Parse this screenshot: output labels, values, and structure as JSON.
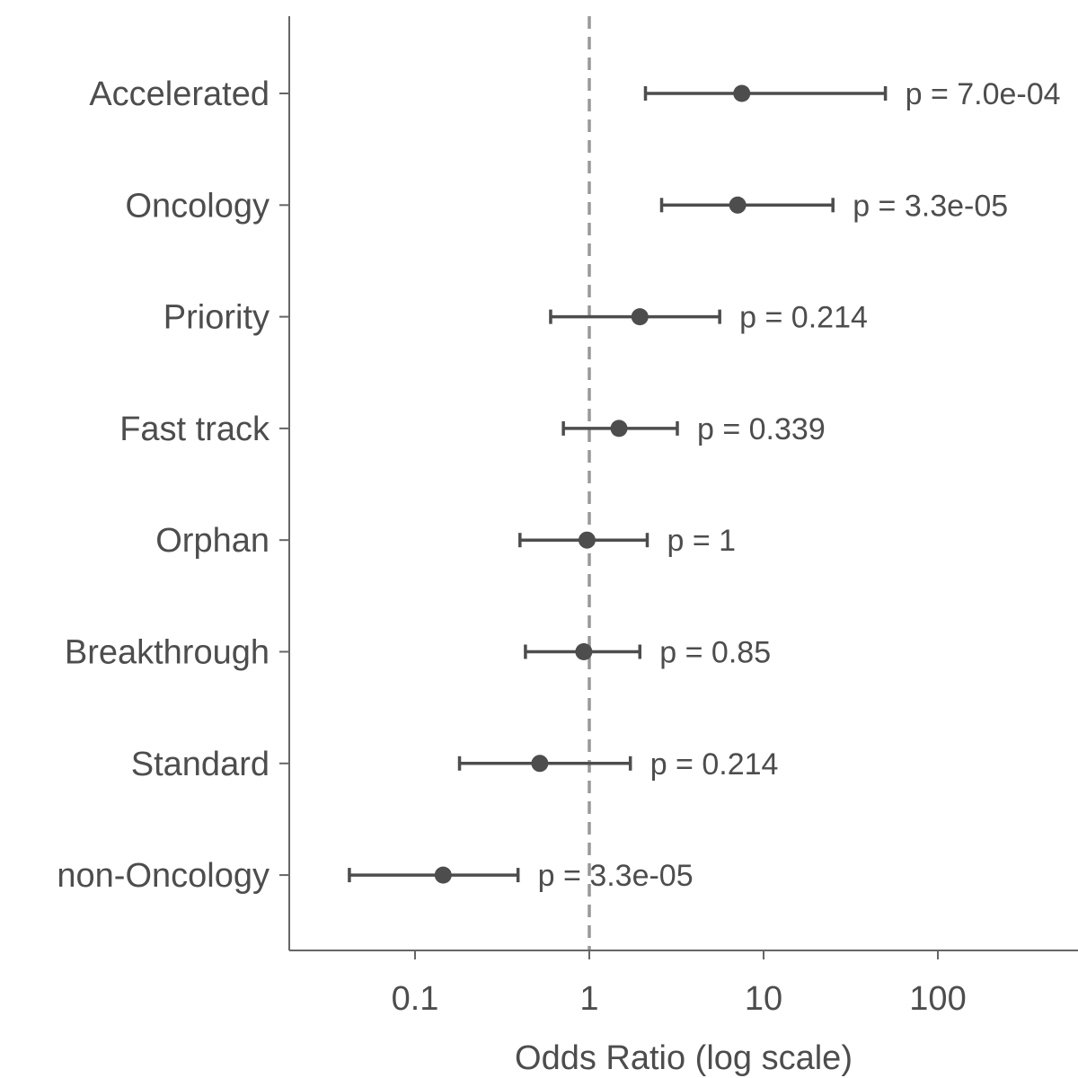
{
  "chart_data": {
    "type": "forest",
    "categories": [
      "Accelerated",
      "Oncology",
      "Priority",
      "Fast track",
      "Orphan",
      "Breakthrough",
      "Standard",
      "non-Oncology"
    ],
    "series": [
      {
        "estimates": [
          7.5,
          7.1,
          1.95,
          1.48,
          0.97,
          0.93,
          0.52,
          0.145
        ],
        "ci_low": [
          2.1,
          2.6,
          0.6,
          0.71,
          0.4,
          0.43,
          0.18,
          0.042
        ],
        "ci_high": [
          50,
          25,
          5.6,
          3.2,
          2.15,
          1.95,
          1.72,
          0.39
        ],
        "p_labels": [
          "p = 7.0e-04",
          "p = 3.3e-05",
          "p = 0.214",
          "p = 0.339",
          "p = 1",
          "p = 0.85",
          "p = 0.214",
          "p = 3.3e-05"
        ]
      }
    ],
    "x_scale": "log",
    "xlim": [
      0.02,
      600
    ],
    "x_ticks": [
      0.1,
      1,
      10,
      100
    ],
    "x_tick_labels": [
      "0.1",
      "1",
      "10",
      "100"
    ],
    "reference_line": 1,
    "xlabel": "Odds Ratio (log scale)",
    "ylabel": "",
    "grid": false,
    "colors": {
      "marks": "#4d4d4d",
      "reference": "#999999",
      "axis": "#666666"
    }
  }
}
